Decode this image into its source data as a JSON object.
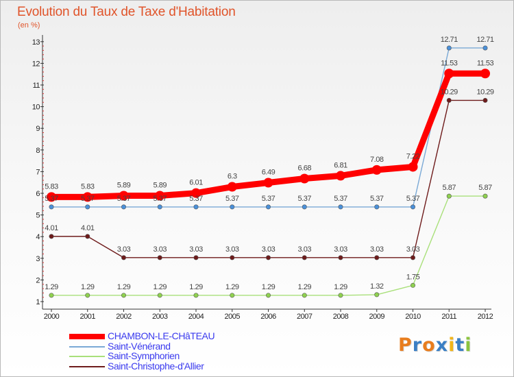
{
  "title": "Evolution du Taux de Taxe d'Habitation",
  "unit": "(en %)",
  "logo": {
    "letters": [
      "P",
      "r",
      "o",
      "x",
      "i",
      "t",
      "i"
    ],
    "colors": [
      "#e87d1e",
      "#3b7fc4",
      "#e87d1e",
      "#3b7fc4",
      "#f2b51a",
      "#3b7fc4",
      "#8cc43f"
    ]
  },
  "chart_data": {
    "type": "line",
    "title": "Evolution du Taux de Taxe d'Habitation",
    "ylabel": "(en %)",
    "xlabel": "",
    "categories": [
      "2000",
      "2001",
      "2002",
      "2003",
      "2004",
      "2005",
      "2006",
      "2007",
      "2008",
      "2009",
      "2010",
      "2011",
      "2012"
    ],
    "yticks": [
      "1",
      "2",
      "3",
      "4",
      "5",
      "6",
      "7",
      "8",
      "9",
      "10",
      "11",
      "12",
      "13"
    ],
    "ylim": [
      0.65,
      13
    ],
    "grid": false,
    "legend_position": "bottom-left",
    "series": [
      {
        "name": "Saint-Christophe-d'Allier",
        "color": "#6e1b1b",
        "marker_fill": "#6e1b1b",
        "values": [
          4.01,
          4.01,
          3.03,
          3.03,
          3.03,
          3.03,
          3.03,
          3.03,
          3.03,
          3.03,
          3.03,
          10.29,
          10.29
        ],
        "labels": [
          "4.01",
          "4.01",
          "3.03",
          "3.03",
          "3.03",
          "3.03",
          "3.03",
          "3.03",
          "3.03",
          "3.03",
          "3.03",
          "10.29",
          "10.29"
        ]
      },
      {
        "name": "Saint-Symphorien",
        "color": "#a9e07a",
        "marker_fill": "#8fd14f",
        "values": [
          1.29,
          1.29,
          1.29,
          1.29,
          1.29,
          1.29,
          1.29,
          1.29,
          1.29,
          1.32,
          1.75,
          5.87,
          5.87
        ],
        "labels": [
          "1.29",
          "1.29",
          "1.29",
          "1.29",
          "1.29",
          "1.29",
          "1.29",
          "1.29",
          "1.29",
          "1.32",
          "1.75",
          "5.87",
          "5.87"
        ]
      },
      {
        "name": "Saint-Vénérand",
        "color": "#7aa9d6",
        "marker_fill": "#4a90d9",
        "values": [
          5.37,
          5.37,
          5.37,
          5.37,
          5.37,
          5.37,
          5.37,
          5.37,
          5.37,
          5.37,
          5.37,
          12.71,
          12.71
        ],
        "labels": [
          "5.37",
          "5.37",
          "5.37",
          "5.37",
          "5.37",
          "5.37",
          "5.37",
          "5.37",
          "5.37",
          "5.37",
          "5.37",
          "12.71",
          "12.71"
        ]
      },
      {
        "name": "CHAMBON-LE-CHâTEAU",
        "color": "#ff0000",
        "marker_fill": "#ff0000",
        "values": [
          5.83,
          5.83,
          5.89,
          5.89,
          6.01,
          6.3,
          6.49,
          6.68,
          6.81,
          7.08,
          7.22,
          11.53,
          11.53
        ],
        "labels": [
          "5.83",
          "5.83",
          "5.89",
          "5.89",
          "6.01",
          "6.3",
          "6.49",
          "6.68",
          "6.81",
          "7.08",
          "7.22",
          "11.53",
          "11.53"
        ]
      }
    ],
    "legend": [
      {
        "name": "CHAMBON-LE-CHâTEAU",
        "color": "#ff0000",
        "thick": true
      },
      {
        "name": "Saint-Vénérand",
        "color": "#7aa9d6",
        "thick": false
      },
      {
        "name": "Saint-Symphorien",
        "color": "#a9e07a",
        "thick": false
      },
      {
        "name": "Saint-Christophe-d'Allier",
        "color": "#6e1b1b",
        "thick": false
      }
    ]
  }
}
